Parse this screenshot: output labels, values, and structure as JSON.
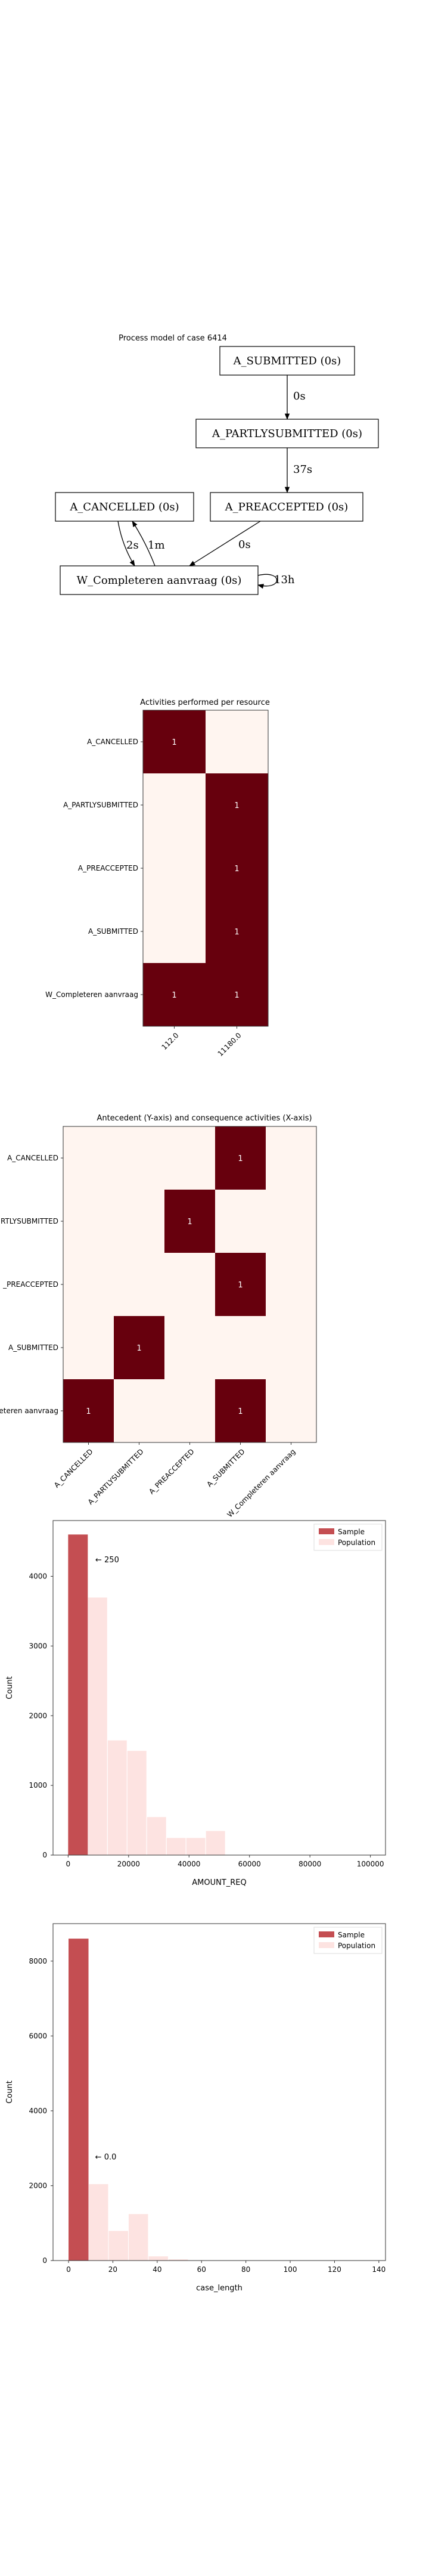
{
  "process_model": {
    "title": "Process model of case 6414",
    "nodes": [
      {
        "id": "sub",
        "label": "A_SUBMITTED (0s)"
      },
      {
        "id": "par",
        "label": "A_PARTLYSUBMITTED (0s)"
      },
      {
        "id": "can",
        "label": "A_CANCELLED (0s)"
      },
      {
        "id": "pre",
        "label": "A_PREACCEPTED (0s)"
      },
      {
        "id": "wco",
        "label": "W_Completeren aanvraag (0s)"
      }
    ],
    "edges": [
      {
        "from": "sub",
        "to": "par",
        "label": "0s"
      },
      {
        "from": "par",
        "to": "pre",
        "label": "37s"
      },
      {
        "from": "pre",
        "to": "wco",
        "label": "0s"
      },
      {
        "from": "can",
        "to": "wco",
        "label": "2s"
      },
      {
        "from": "wco",
        "to": "can",
        "label": "1m"
      },
      {
        "from": "wco",
        "to": "wco",
        "label": "13h"
      }
    ]
  },
  "chart_data": [
    {
      "type": "heatmap",
      "title": "Activities performed per resource",
      "rows": [
        "A_CANCELLED",
        "A_PARTLYSUBMITTED",
        "A_PREACCEPTED",
        "A_SUBMITTED",
        "W_Completeren aanvraag"
      ],
      "columns": [
        "112.0",
        "11180.0"
      ],
      "values": [
        [
          1,
          0
        ],
        [
          0,
          1
        ],
        [
          0,
          1
        ],
        [
          0,
          1
        ],
        [
          1,
          1
        ]
      ]
    },
    {
      "type": "heatmap",
      "title": "Antecedent (Y-axis) and consequence activities (X-axis)",
      "rows": [
        "A_CANCELLED",
        "A_PARTLYSUBMITTED",
        "A_PREACCEPTED",
        "A_SUBMITTED",
        "W_Completeren aanvraag"
      ],
      "row_labels_shown": [
        "A_CANCELLED",
        "RTLYSUBMITTED",
        "_PREACCEPTED",
        "A_SUBMITTED",
        "eteren aanvraag"
      ],
      "columns": [
        "A_CANCELLED",
        "A_PARTLYSUBMITTED",
        "A_PREACCEPTED",
        "A_SUBMITTED",
        "W_Completeren aanvraag"
      ],
      "column_labels_shown": [
        "A_CANCELLED",
        "A_PARTLYSUBMITTED",
        "A_PREACCEPTED",
        "A_SUBMITTED",
        "W_Completeren aanvraag"
      ],
      "values": [
        [
          0,
          0,
          0,
          1,
          0
        ],
        [
          0,
          0,
          1,
          0,
          0
        ],
        [
          0,
          0,
          0,
          1,
          0
        ],
        [
          0,
          1,
          0,
          0,
          0
        ],
        [
          1,
          0,
          0,
          1,
          0
        ]
      ]
    },
    {
      "type": "bar",
      "xlabel": "AMOUNT_REQ",
      "ylabel": "Count",
      "xlim": [
        -5000,
        105000
      ],
      "ylim": [
        0,
        4800
      ],
      "xticks": [
        0,
        20000,
        40000,
        60000,
        80000,
        100000
      ],
      "yticks": [
        0,
        1000,
        2000,
        3000,
        4000
      ],
      "annotation": {
        "text": "← 250",
        "x": 9000,
        "y": 4200
      },
      "legend": [
        "Sample",
        "Population"
      ],
      "legend_position": "top-right",
      "series": [
        {
          "name": "Sample",
          "color": "#c44e52",
          "bars": [
            {
              "x0": 0,
              "x1": 6500,
              "value": 4600
            }
          ]
        },
        {
          "name": "Population",
          "color": "#fde3e1",
          "bars": [
            {
              "x0": 0,
              "x1": 6500,
              "value": 4600
            },
            {
              "x0": 6500,
              "x1": 13000,
              "value": 3700
            },
            {
              "x0": 13000,
              "x1": 19500,
              "value": 1650
            },
            {
              "x0": 19500,
              "x1": 26000,
              "value": 1500
            },
            {
              "x0": 26000,
              "x1": 32500,
              "value": 550
            },
            {
              "x0": 32500,
              "x1": 39000,
              "value": 250
            },
            {
              "x0": 39000,
              "x1": 45500,
              "value": 250
            },
            {
              "x0": 45500,
              "x1": 52000,
              "value": 350
            }
          ]
        }
      ]
    },
    {
      "type": "bar",
      "xlabel": "case_length",
      "ylabel": "Count",
      "xlim": [
        -7,
        143
      ],
      "ylim": [
        0,
        9000
      ],
      "xticks": [
        0,
        20,
        40,
        60,
        80,
        100,
        120,
        140
      ],
      "yticks": [
        0,
        2000,
        4000,
        6000,
        8000
      ],
      "annotation": {
        "text": "← 0.0",
        "x": 12,
        "y": 2700
      },
      "legend": [
        "Sample",
        "Population"
      ],
      "legend_position": "top-right",
      "series": [
        {
          "name": "Sample",
          "color": "#c44e52",
          "bars": [
            {
              "x0": 0,
              "x1": 9,
              "value": 8600
            }
          ]
        },
        {
          "name": "Population",
          "color": "#fde3e1",
          "bars": [
            {
              "x0": 0,
              "x1": 9,
              "value": 8600
            },
            {
              "x0": 9,
              "x1": 18,
              "value": 2050
            },
            {
              "x0": 18,
              "x1": 27,
              "value": 800
            },
            {
              "x0": 27,
              "x1": 36,
              "value": 1250
            },
            {
              "x0": 36,
              "x1": 45,
              "value": 120
            },
            {
              "x0": 45,
              "x1": 54,
              "value": 40
            }
          ]
        }
      ]
    }
  ]
}
